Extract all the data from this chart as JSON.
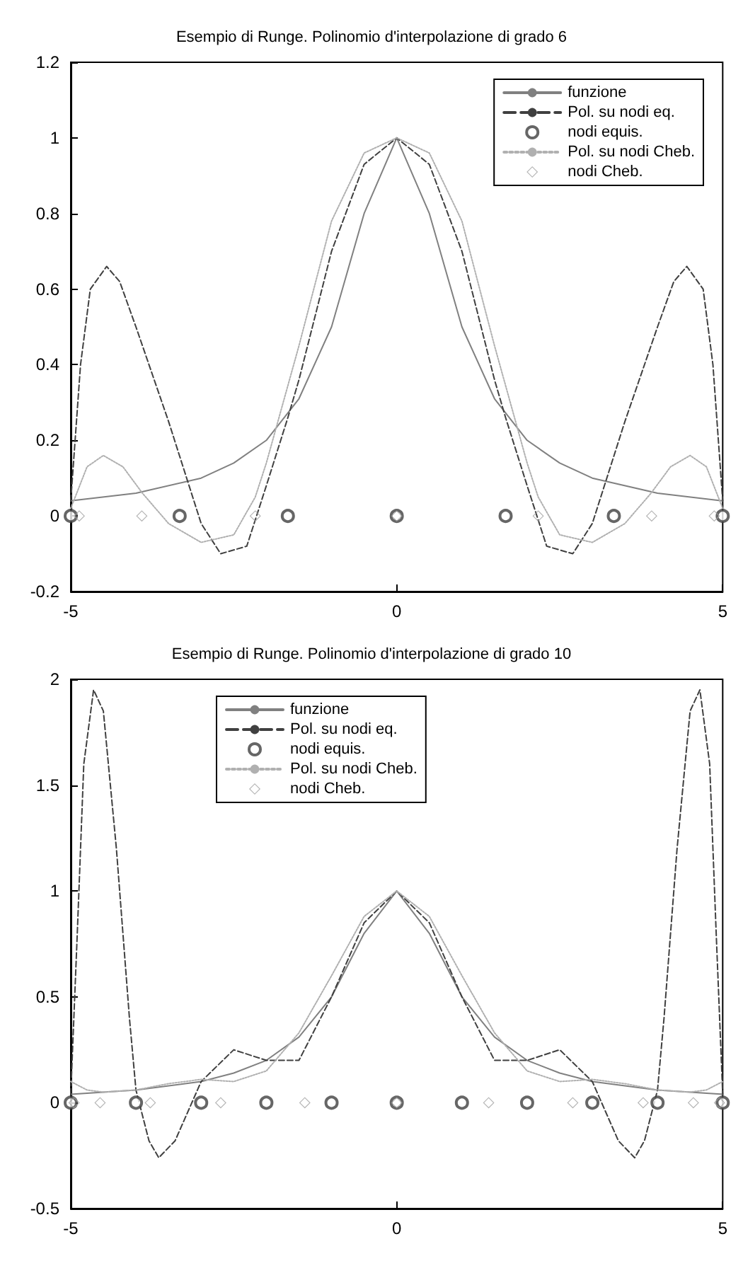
{
  "chart_data": [
    {
      "type": "line",
      "title": "Esempio di Runge. Polinomio d'interpolazione di grado 6",
      "xlim": [
        -5,
        5
      ],
      "xticks": [
        -5,
        0,
        5
      ],
      "ylim": [
        -0.2,
        1.2
      ],
      "yticks": [
        -0.2,
        0,
        0.2,
        0.4,
        0.6,
        0.8,
        1,
        1.2
      ],
      "grid": false,
      "legend": "top right",
      "series": [
        {
          "name": "funzione",
          "color": "#808080",
          "line_style": "solid",
          "marker": "none",
          "x": [
            -5,
            -4,
            -3,
            -2.5,
            -2,
            -1.5,
            -1,
            -0.5,
            0,
            0.5,
            1,
            1.5,
            2,
            2.5,
            3,
            4,
            5
          ],
          "values": [
            0.04,
            0.06,
            0.1,
            0.14,
            0.2,
            0.31,
            0.5,
            0.8,
            1,
            0.8,
            0.5,
            0.31,
            0.2,
            0.14,
            0.1,
            0.06,
            0.04
          ]
        },
        {
          "name": "Pol. su nodi eq.",
          "color": "#404040",
          "line_style": "dashed",
          "marker": "none",
          "x": [
            -5,
            -4.85,
            -4.7,
            -4.45,
            -4.25,
            -4,
            -3.5,
            -3,
            -2.7,
            -2.3,
            -2,
            -1.67,
            -1.5,
            -1,
            -0.5,
            0,
            0.5,
            1,
            1.5,
            1.67,
            2,
            2.3,
            2.7,
            3,
            3.5,
            4,
            4.25,
            4.45,
            4.7,
            4.85,
            5
          ],
          "values": [
            0.04,
            0.4,
            0.6,
            0.66,
            0.62,
            0.5,
            0.25,
            -0.02,
            -0.1,
            -0.08,
            0.08,
            0.26,
            0.36,
            0.7,
            0.93,
            1,
            0.93,
            0.7,
            0.36,
            0.26,
            0.08,
            -0.08,
            -0.1,
            -0.02,
            0.25,
            0.5,
            0.62,
            0.66,
            0.6,
            0.4,
            0.04
          ]
        },
        {
          "name": "nodi equis.",
          "type": "scatter",
          "color": "#404040",
          "marker": "circle",
          "x": [
            -5,
            -3.33,
            -1.67,
            0,
            1.67,
            3.33,
            5
          ],
          "values": [
            0,
            0,
            0,
            0,
            0,
            0,
            0
          ]
        },
        {
          "name": "Pol. su nodi Cheb.",
          "color": "#b0b0b0",
          "line_style": "dotted",
          "marker": "none",
          "x": [
            -5,
            -4.75,
            -4.5,
            -4.2,
            -3.9,
            -3.5,
            -3,
            -2.5,
            -2.17,
            -2,
            -1.5,
            -1,
            -0.5,
            0,
            0.5,
            1,
            1.5,
            2,
            2.17,
            2.5,
            3,
            3.5,
            3.9,
            4.2,
            4.5,
            4.75,
            5
          ],
          "values": [
            0.02,
            0.13,
            0.16,
            0.13,
            0.06,
            -0.02,
            -0.07,
            -0.05,
            0.05,
            0.14,
            0.45,
            0.78,
            0.96,
            1,
            0.96,
            0.78,
            0.45,
            0.14,
            0.05,
            -0.05,
            -0.07,
            -0.02,
            0.06,
            0.13,
            0.16,
            0.13,
            0.02
          ]
        },
        {
          "name": "nodi Cheb.",
          "type": "scatter",
          "color": "#a0a0a0",
          "marker": "diamond",
          "x": [
            -4.87,
            -3.91,
            -2.17,
            0,
            2.17,
            3.91,
            4.87
          ],
          "values": [
            0,
            0,
            0,
            0,
            0,
            0,
            0
          ]
        }
      ]
    },
    {
      "type": "line",
      "title": "Esempio di Runge. Polinomio d'interpolazione di grado 10",
      "xlim": [
        -5,
        5
      ],
      "xticks": [
        -5,
        0,
        5
      ],
      "ylim": [
        -0.5,
        2
      ],
      "yticks": [
        -0.5,
        0,
        0.5,
        1,
        1.5,
        2
      ],
      "grid": false,
      "legend": "top",
      "series": [
        {
          "name": "funzione",
          "color": "#808080",
          "line_style": "solid",
          "marker": "none",
          "x": [
            -5,
            -4,
            -3,
            -2.5,
            -2,
            -1.5,
            -1,
            -0.5,
            0,
            0.5,
            1,
            1.5,
            2,
            2.5,
            3,
            4,
            5
          ],
          "values": [
            0.04,
            0.06,
            0.1,
            0.14,
            0.2,
            0.31,
            0.5,
            0.8,
            1,
            0.8,
            0.5,
            0.31,
            0.2,
            0.14,
            0.1,
            0.06,
            0.04
          ]
        },
        {
          "name": "Pol. su nodi eq.",
          "color": "#404040",
          "line_style": "dashed",
          "marker": "none",
          "x": [
            -5,
            -4.9,
            -4.8,
            -4.65,
            -4.5,
            -4.3,
            -4.1,
            -4,
            -3.8,
            -3.65,
            -3.4,
            -3,
            -2.5,
            -2,
            -1.5,
            -1,
            -0.5,
            0,
            0.5,
            1,
            1.5,
            2,
            2.5,
            3,
            3.4,
            3.65,
            3.8,
            4,
            4.1,
            4.3,
            4.5,
            4.65,
            4.8,
            4.9,
            5
          ],
          "values": [
            0.04,
            0.8,
            1.6,
            1.95,
            1.85,
            1.2,
            0.4,
            0.06,
            -0.18,
            -0.26,
            -0.18,
            0.1,
            0.25,
            0.2,
            0.2,
            0.5,
            0.85,
            1,
            0.85,
            0.5,
            0.2,
            0.2,
            0.25,
            0.1,
            -0.18,
            -0.26,
            -0.18,
            0.06,
            0.4,
            1.2,
            1.85,
            1.95,
            1.6,
            0.8,
            0.04
          ]
        },
        {
          "name": "nodi equis.",
          "type": "scatter",
          "color": "#404040",
          "marker": "circle",
          "x": [
            -5,
            -4,
            -3,
            -2,
            -1,
            0,
            1,
            2,
            3,
            4,
            5
          ],
          "values": [
            0,
            0,
            0,
            0,
            0,
            0,
            0,
            0,
            0,
            0,
            0
          ]
        },
        {
          "name": "Pol. su nodi Cheb.",
          "color": "#b0b0b0",
          "line_style": "dotted",
          "marker": "none",
          "x": [
            -5,
            -4.75,
            -4.5,
            -4,
            -3.5,
            -3,
            -2.5,
            -2,
            -1.5,
            -1,
            -0.5,
            0,
            0.5,
            1,
            1.5,
            2,
            2.5,
            3,
            3.5,
            4,
            4.5,
            4.75,
            5
          ],
          "values": [
            0.1,
            0.06,
            0.05,
            0.06,
            0.09,
            0.11,
            0.1,
            0.15,
            0.33,
            0.6,
            0.88,
            1,
            0.88,
            0.6,
            0.33,
            0.15,
            0.1,
            0.11,
            0.09,
            0.06,
            0.05,
            0.06,
            0.1
          ]
        },
        {
          "name": "nodi Cheb.",
          "type": "scatter",
          "color": "#a0a0a0",
          "marker": "diamond",
          "x": [
            -4.95,
            -4.55,
            -3.78,
            -2.7,
            -1.41,
            0,
            1.41,
            2.7,
            3.78,
            4.55,
            4.95
          ],
          "values": [
            0,
            0,
            0,
            0,
            0,
            0,
            0,
            0,
            0,
            0,
            0
          ]
        }
      ]
    }
  ]
}
